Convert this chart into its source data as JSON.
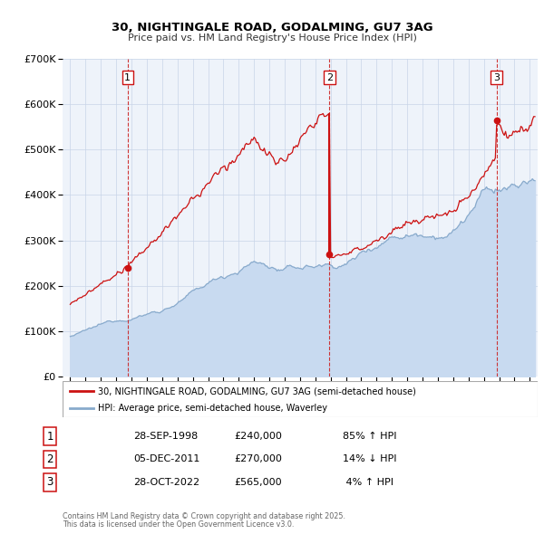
{
  "title": "30, NIGHTINGALE ROAD, GODALMING, GU7 3AG",
  "subtitle": "Price paid vs. HM Land Registry's House Price Index (HPI)",
  "red_label": "30, NIGHTINGALE ROAD, GODALMING, GU7 3AG (semi-detached house)",
  "blue_label": "HPI: Average price, semi-detached house, Waverley",
  "transactions": [
    {
      "num": 1,
      "date": "28-SEP-1998",
      "year": 1998.75,
      "price": 240000,
      "pct": "85%",
      "dir": "↑"
    },
    {
      "num": 2,
      "date": "05-DEC-2011",
      "year": 2011.917,
      "price": 270000,
      "pct": "14%",
      "dir": "↓"
    },
    {
      "num": 3,
      "date": "28-OCT-2022",
      "year": 2022.833,
      "price": 565000,
      "pct": "4%",
      "dir": "↑"
    }
  ],
  "footer1": "Contains HM Land Registry data © Crown copyright and database right 2025.",
  "footer2": "This data is licensed under the Open Government Licence v3.0.",
  "ylim": [
    0,
    700000
  ],
  "xlim_start": 1994.5,
  "xlim_end": 2025.5,
  "red_color": "#cc1111",
  "blue_color": "#88aacc",
  "blue_fill": "#c8daf0",
  "dashed_color": "#cc2222",
  "background_color": "#eef3fa",
  "grid_color": "#c8d4e8"
}
